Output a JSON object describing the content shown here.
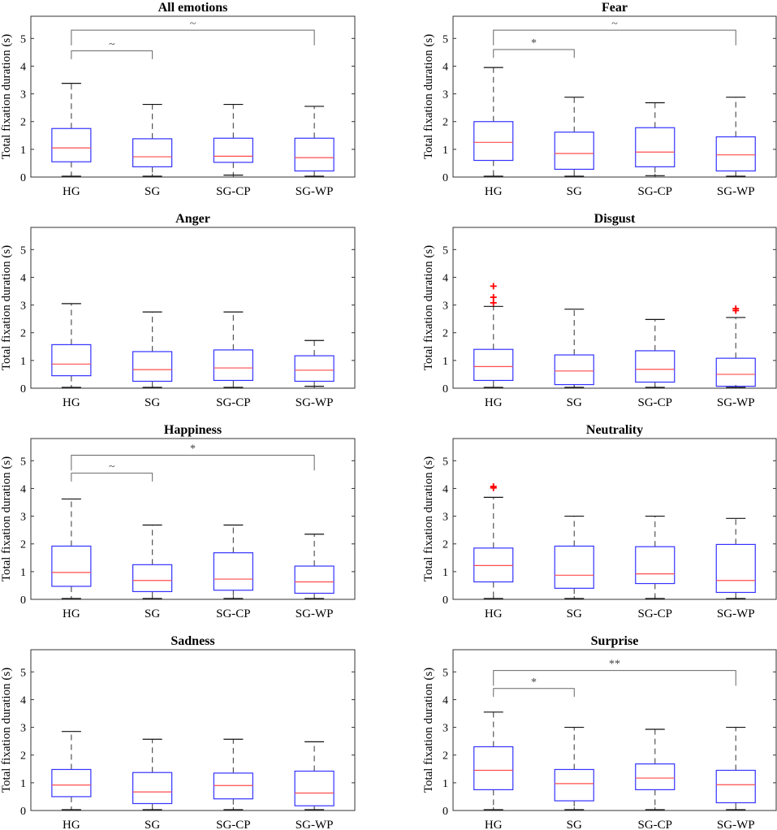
{
  "figure": {
    "ylabel": "Total fixation duration (s)"
  },
  "chart_data": [
    {
      "type": "box",
      "title": "All emotions",
      "categories": [
        "HG",
        "SG",
        "SG-CP",
        "SG-WP"
      ],
      "ylabel": "Total fixation duration (s)",
      "ylim": [
        0,
        5.8
      ],
      "yticks": [
        0,
        1,
        2,
        3,
        4,
        5
      ],
      "boxes": [
        {
          "q1": 0.55,
          "median": 1.05,
          "q3": 1.75,
          "whisker_low": 0.03,
          "whisker_high": 3.38,
          "outliers": []
        },
        {
          "q1": 0.37,
          "median": 0.73,
          "q3": 1.38,
          "whisker_low": 0.03,
          "whisker_high": 2.62,
          "outliers": []
        },
        {
          "q1": 0.53,
          "median": 0.75,
          "q3": 1.4,
          "whisker_low": 0.07,
          "whisker_high": 2.62,
          "outliers": []
        },
        {
          "q1": 0.22,
          "median": 0.7,
          "q3": 1.4,
          "whisker_low": 0.03,
          "whisker_high": 2.55,
          "outliers": []
        }
      ],
      "significance": [
        {
          "from": "HG",
          "to": "SG",
          "label": "~",
          "level": 4.55,
          "drop": 0.3
        },
        {
          "from": "HG",
          "to": "SG-WP",
          "label": "~",
          "level": 5.3,
          "drop": 0.55
        }
      ]
    },
    {
      "type": "box",
      "title": "Fear",
      "categories": [
        "HG",
        "SG",
        "SG-CP",
        "SG-WP"
      ],
      "ylabel": "Total fixation duration (s)",
      "ylim": [
        0,
        5.8
      ],
      "yticks": [
        0,
        1,
        2,
        3,
        4,
        5
      ],
      "boxes": [
        {
          "q1": 0.6,
          "median": 1.25,
          "q3": 2.0,
          "whisker_low": 0.03,
          "whisker_high": 3.95,
          "outliers": []
        },
        {
          "q1": 0.28,
          "median": 0.85,
          "q3": 1.62,
          "whisker_low": 0.03,
          "whisker_high": 2.88,
          "outliers": []
        },
        {
          "q1": 0.37,
          "median": 0.9,
          "q3": 1.78,
          "whisker_low": 0.05,
          "whisker_high": 2.68,
          "outliers": []
        },
        {
          "q1": 0.22,
          "median": 0.8,
          "q3": 1.45,
          "whisker_low": 0.03,
          "whisker_high": 2.88,
          "outliers": []
        }
      ],
      "significance": [
        {
          "from": "HG",
          "to": "SG",
          "label": "*",
          "level": 4.6,
          "drop": 0.3
        },
        {
          "from": "HG",
          "to": "SG-WP",
          "label": "~",
          "level": 5.3,
          "drop": 0.55
        }
      ]
    },
    {
      "type": "box",
      "title": "Anger",
      "categories": [
        "HG",
        "SG",
        "SG-CP",
        "SG-WP"
      ],
      "ylabel": "Total fixation duration (s)",
      "ylim": [
        0,
        5.8
      ],
      "yticks": [
        0,
        1,
        2,
        3,
        4,
        5
      ],
      "boxes": [
        {
          "q1": 0.45,
          "median": 0.87,
          "q3": 1.57,
          "whisker_low": 0.03,
          "whisker_high": 3.05,
          "outliers": []
        },
        {
          "q1": 0.25,
          "median": 0.67,
          "q3": 1.32,
          "whisker_low": 0.03,
          "whisker_high": 2.75,
          "outliers": []
        },
        {
          "q1": 0.28,
          "median": 0.73,
          "q3": 1.38,
          "whisker_low": 0.03,
          "whisker_high": 2.75,
          "outliers": []
        },
        {
          "q1": 0.25,
          "median": 0.65,
          "q3": 1.17,
          "whisker_low": 0.07,
          "whisker_high": 1.72,
          "outliers": []
        }
      ],
      "significance": []
    },
    {
      "type": "box",
      "title": "Disgust",
      "categories": [
        "HG",
        "SG",
        "SG-CP",
        "SG-WP"
      ],
      "ylabel": "Total fixation duration (s)",
      "ylim": [
        0,
        5.8
      ],
      "yticks": [
        0,
        1,
        2,
        3,
        4,
        5
      ],
      "boxes": [
        {
          "q1": 0.28,
          "median": 0.78,
          "q3": 1.4,
          "whisker_low": 0.03,
          "whisker_high": 2.95,
          "outliers": [
            3.08,
            3.28,
            3.68
          ]
        },
        {
          "q1": 0.13,
          "median": 0.62,
          "q3": 1.2,
          "whisker_low": 0.03,
          "whisker_high": 2.85,
          "outliers": []
        },
        {
          "q1": 0.22,
          "median": 0.68,
          "q3": 1.35,
          "whisker_low": 0.03,
          "whisker_high": 2.48,
          "outliers": []
        },
        {
          "q1": 0.07,
          "median": 0.5,
          "q3": 1.08,
          "whisker_low": 0.03,
          "whisker_high": 2.55,
          "outliers": [
            2.8,
            2.87
          ]
        }
      ],
      "significance": []
    },
    {
      "type": "box",
      "title": "Happiness",
      "categories": [
        "HG",
        "SG",
        "SG-CP",
        "SG-WP"
      ],
      "ylabel": "Total fixation duration (s)",
      "ylim": [
        0,
        5.8
      ],
      "yticks": [
        0,
        1,
        2,
        3,
        4,
        5
      ],
      "boxes": [
        {
          "q1": 0.47,
          "median": 0.97,
          "q3": 1.92,
          "whisker_low": 0.03,
          "whisker_high": 3.62,
          "outliers": []
        },
        {
          "q1": 0.28,
          "median": 0.68,
          "q3": 1.25,
          "whisker_low": 0.03,
          "whisker_high": 2.68,
          "outliers": []
        },
        {
          "q1": 0.33,
          "median": 0.73,
          "q3": 1.68,
          "whisker_low": 0.03,
          "whisker_high": 2.68,
          "outliers": []
        },
        {
          "q1": 0.22,
          "median": 0.63,
          "q3": 1.2,
          "whisker_low": 0.03,
          "whisker_high": 2.35,
          "outliers": []
        }
      ],
      "significance": [
        {
          "from": "HG",
          "to": "SG",
          "label": "~",
          "level": 4.55,
          "drop": 0.3
        },
        {
          "from": "HG",
          "to": "SG-WP",
          "label": "*",
          "level": 5.2,
          "drop": 0.55
        }
      ]
    },
    {
      "type": "box",
      "title": "Neutrality",
      "categories": [
        "HG",
        "SG",
        "SG-CP",
        "SG-WP"
      ],
      "ylabel": "Total fixation duration (s)",
      "ylim": [
        0,
        5.8
      ],
      "yticks": [
        0,
        1,
        2,
        3,
        4,
        5
      ],
      "boxes": [
        {
          "q1": 0.63,
          "median": 1.22,
          "q3": 1.85,
          "whisker_low": 0.03,
          "whisker_high": 3.68,
          "outliers": [
            4.02,
            4.07
          ]
        },
        {
          "q1": 0.4,
          "median": 0.87,
          "q3": 1.92,
          "whisker_low": 0.03,
          "whisker_high": 3.0,
          "outliers": []
        },
        {
          "q1": 0.57,
          "median": 0.92,
          "q3": 1.9,
          "whisker_low": 0.03,
          "whisker_high": 3.0,
          "outliers": []
        },
        {
          "q1": 0.25,
          "median": 0.68,
          "q3": 1.98,
          "whisker_low": 0.03,
          "whisker_high": 2.92,
          "outliers": []
        }
      ],
      "significance": []
    },
    {
      "type": "box",
      "title": "Sadness",
      "categories": [
        "HG",
        "SG",
        "SG-CP",
        "SG-WP"
      ],
      "ylabel": "Total fixation duration (s)",
      "ylim": [
        0,
        5.8
      ],
      "yticks": [
        0,
        1,
        2,
        3,
        4,
        5
      ],
      "boxes": [
        {
          "q1": 0.5,
          "median": 0.92,
          "q3": 1.48,
          "whisker_low": 0.03,
          "whisker_high": 2.85,
          "outliers": []
        },
        {
          "q1": 0.25,
          "median": 0.67,
          "q3": 1.37,
          "whisker_low": 0.03,
          "whisker_high": 2.57,
          "outliers": []
        },
        {
          "q1": 0.42,
          "median": 0.9,
          "q3": 1.35,
          "whisker_low": 0.03,
          "whisker_high": 2.57,
          "outliers": []
        },
        {
          "q1": 0.17,
          "median": 0.63,
          "q3": 1.42,
          "whisker_low": 0.03,
          "whisker_high": 2.48,
          "outliers": []
        }
      ],
      "significance": []
    },
    {
      "type": "box",
      "title": "Surprise",
      "categories": [
        "HG",
        "SG",
        "SG-CP",
        "SG-WP"
      ],
      "ylabel": "Total fixation duration (s)",
      "ylim": [
        0,
        5.8
      ],
      "yticks": [
        0,
        1,
        2,
        3,
        4,
        5
      ],
      "boxes": [
        {
          "q1": 0.75,
          "median": 1.45,
          "q3": 2.3,
          "whisker_low": 0.03,
          "whisker_high": 3.55,
          "outliers": []
        },
        {
          "q1": 0.35,
          "median": 0.97,
          "q3": 1.48,
          "whisker_low": 0.03,
          "whisker_high": 3.0,
          "outliers": []
        },
        {
          "q1": 0.75,
          "median": 1.17,
          "q3": 1.68,
          "whisker_low": 0.03,
          "whisker_high": 2.93,
          "outliers": []
        },
        {
          "q1": 0.28,
          "median": 0.93,
          "q3": 1.45,
          "whisker_low": 0.03,
          "whisker_high": 3.0,
          "outliers": []
        }
      ],
      "significance": [
        {
          "from": "HG",
          "to": "SG",
          "label": "*",
          "level": 4.4,
          "drop": 0.3
        },
        {
          "from": "HG",
          "to": "SG-WP",
          "label": "**",
          "level": 5.05,
          "drop": 0.55
        }
      ]
    }
  ],
  "colors": {
    "box": "#3333ff",
    "median": "#ff4d4d",
    "whisker": "#555555",
    "outlier": "#ff0000",
    "axis": "#333333",
    "bracket": "#666666"
  }
}
